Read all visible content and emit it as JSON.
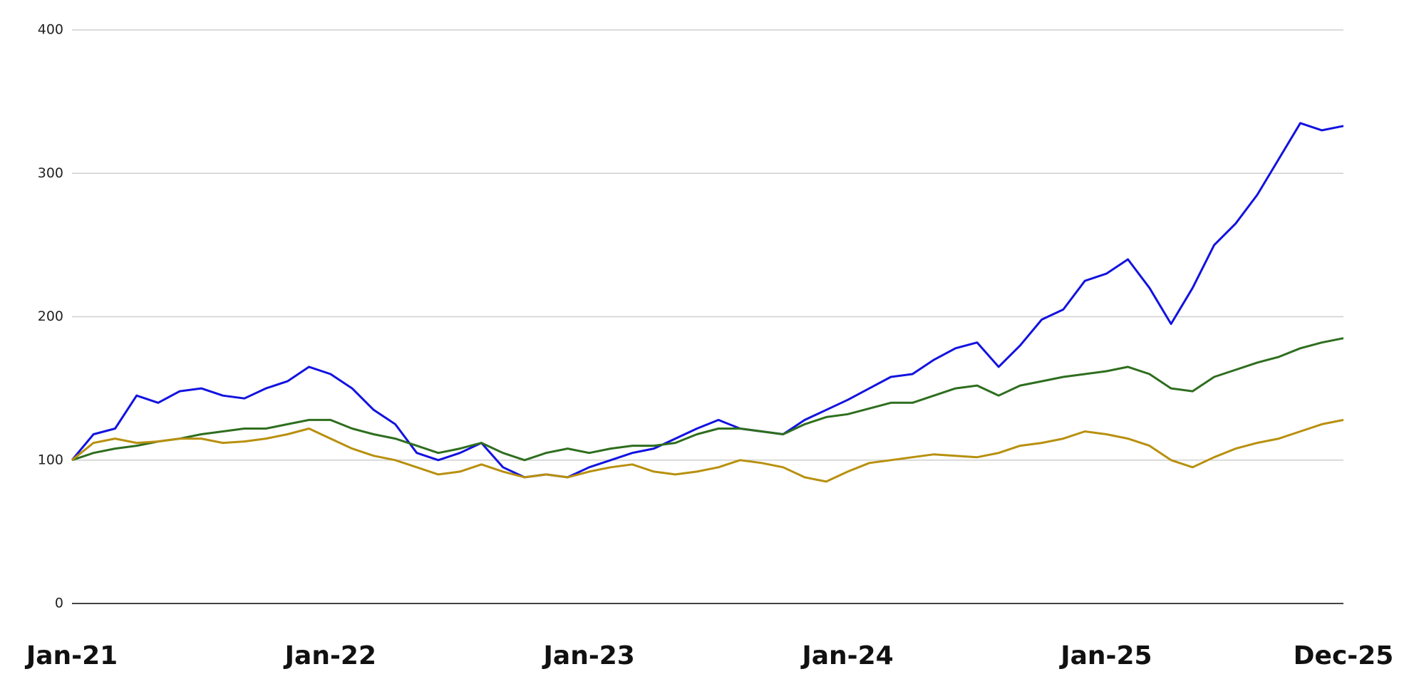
{
  "chart_data": {
    "type": "line",
    "categories": [
      "Jan-21",
      null,
      null,
      null,
      null,
      null,
      null,
      null,
      null,
      null,
      null,
      null,
      "Jan-22",
      null,
      null,
      null,
      null,
      null,
      null,
      null,
      null,
      null,
      null,
      null,
      "Jan-23",
      null,
      null,
      null,
      null,
      null,
      null,
      null,
      null,
      null,
      null,
      null,
      "Jan-24",
      null,
      null,
      null,
      null,
      null,
      null,
      null,
      null,
      null,
      null,
      null,
      "Jan-25",
      null,
      null,
      null,
      null,
      null,
      null,
      null,
      null,
      null,
      null,
      "Dec-25"
    ],
    "series": [
      {
        "color": "#1212e0",
        "values": [
          100,
          118,
          122,
          145,
          140,
          148,
          150,
          145,
          143,
          150,
          155,
          165,
          160,
          150,
          135,
          125,
          105,
          100,
          105,
          112,
          95,
          88,
          90,
          88,
          95,
          100,
          105,
          108,
          115,
          122,
          128,
          122,
          120,
          118,
          128,
          135,
          142,
          150,
          158,
          160,
          170,
          178,
          182,
          165,
          180,
          198,
          205,
          225,
          230,
          240,
          220,
          195,
          220,
          250,
          265,
          285,
          310,
          335,
          330,
          333
        ]
      },
      {
        "color": "#2e6e1e",
        "values": [
          100,
          105,
          108,
          110,
          113,
          115,
          118,
          120,
          122,
          122,
          125,
          128,
          128,
          122,
          118,
          115,
          110,
          105,
          108,
          112,
          105,
          100,
          105,
          108,
          105,
          108,
          110,
          110,
          112,
          118,
          122,
          122,
          120,
          118,
          125,
          130,
          132,
          136,
          140,
          140,
          145,
          150,
          152,
          145,
          152,
          155,
          158,
          160,
          162,
          165,
          160,
          150,
          148,
          158,
          163,
          168,
          172,
          178,
          182,
          185
        ]
      },
      {
        "color": "#b8900e",
        "values": [
          100,
          112,
          115,
          112,
          113,
          115,
          115,
          112,
          113,
          115,
          118,
          122,
          115,
          108,
          103,
          100,
          95,
          90,
          92,
          97,
          92,
          88,
          90,
          88,
          92,
          95,
          97,
          92,
          90,
          92,
          95,
          100,
          98,
          95,
          88,
          85,
          92,
          98,
          100,
          102,
          104,
          103,
          102,
          105,
          110,
          112,
          115,
          120,
          118,
          115,
          110,
          100,
          95,
          102,
          108,
          112,
          115,
          120,
          125,
          128
        ]
      }
    ],
    "ylim": [
      0,
      400
    ],
    "yticks": [
      0,
      100,
      200,
      300,
      400
    ],
    "grid": true
  }
}
